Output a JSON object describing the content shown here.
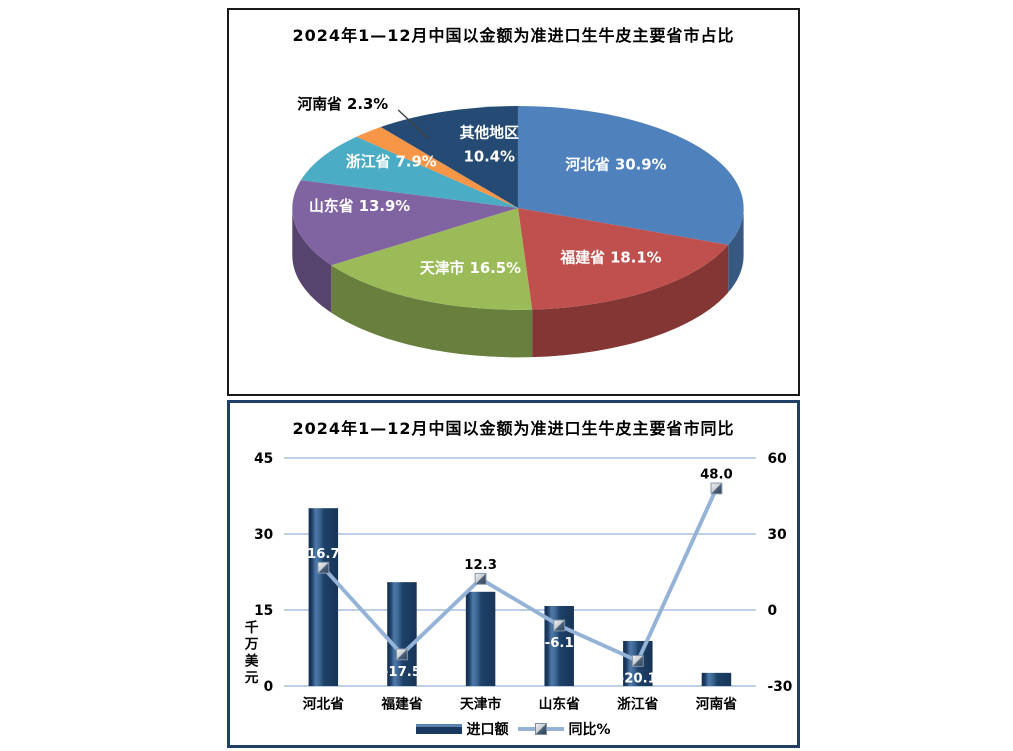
{
  "page": {
    "background": "#ffffff"
  },
  "chart_data": [
    {
      "type": "pie",
      "style": "3d",
      "title": "2024年1—12月中国以金额为准进口生牛皮主要省市占比",
      "unit": "%",
      "start_angle_deg": 0,
      "direction": "clockwise",
      "slices": [
        {
          "label": "河北省",
          "value": 30.9,
          "display": "河北省 30.9%",
          "color": "#4F81BD",
          "label_color": "#FFFFFF"
        },
        {
          "label": "福建省",
          "value": 18.1,
          "display": "福建省 18.1%",
          "color": "#C0504D",
          "label_color": "#FFFFFF"
        },
        {
          "label": "天津市",
          "value": 16.5,
          "display": "天津市 16.5%",
          "color": "#9BBB59",
          "label_color": "#FFFFFF"
        },
        {
          "label": "山东省",
          "value": 13.9,
          "display": "山东省 13.9%",
          "color": "#8064A2",
          "label_color": "#FFFFFF"
        },
        {
          "label": "浙江省",
          "value": 7.9,
          "display": "浙江省 7.9%",
          "color": "#4BACC6",
          "label_color": "#FFFFFF"
        },
        {
          "label": "河南省",
          "value": 2.3,
          "display": "河南省 2.3%",
          "color": "#F79646",
          "label_color": "#000000",
          "label_outside": true
        },
        {
          "label": "其他地区",
          "value": 10.4,
          "display_line1": "其他地区",
          "display_line2": "10.4%",
          "color": "#254A73",
          "label_color": "#FFFFFF",
          "two_line": true
        }
      ]
    },
    {
      "type": "bar+line",
      "title": "2024年1—12月中国以金额为准进口生牛皮主要省市同比",
      "categories": [
        "河北省",
        "福建省",
        "天津市",
        "山东省",
        "浙江省",
        "河南省"
      ],
      "series": [
        {
          "name": "进口额",
          "type": "bar",
          "axis": "left",
          "values": [
            35.1,
            20.5,
            18.6,
            15.8,
            8.9,
            2.6
          ],
          "color": "#1F4E79"
        },
        {
          "name": "同比%",
          "type": "line",
          "axis": "right",
          "values": [
            16.7,
            -17.5,
            12.3,
            -6.1,
            -20.1,
            48.0
          ],
          "color": "#95B3D7",
          "point_labels": [
            {
              "text": "16.7",
              "side": "above",
              "color": "#FFFFFF"
            },
            {
              "text": "-17.5",
              "side": "below",
              "color": "#FFFFFF"
            },
            {
              "text": "12.3",
              "side": "above",
              "color": "#000000"
            },
            {
              "text": "-6.1",
              "side": "below",
              "color": "#FFFFFF"
            },
            {
              "text": "-20.1",
              "side": "below",
              "color": "#FFFFFF"
            },
            {
              "text": "48.0",
              "side": "above",
              "color": "#000000"
            }
          ]
        }
      ],
      "left_axis": {
        "title": "千万美元",
        "title_chars": [
          "千",
          "万",
          "美",
          "元"
        ],
        "ticks": [
          45,
          30,
          15,
          0
        ],
        "min": 0,
        "max": 45
      },
      "right_axis": {
        "title": "同比%",
        "ticks": [
          60,
          30,
          0,
          -30
        ],
        "min": -30,
        "max": 60
      },
      "grid": true,
      "gridline_color": "#95B3D7",
      "legend_position": "bottom"
    }
  ]
}
